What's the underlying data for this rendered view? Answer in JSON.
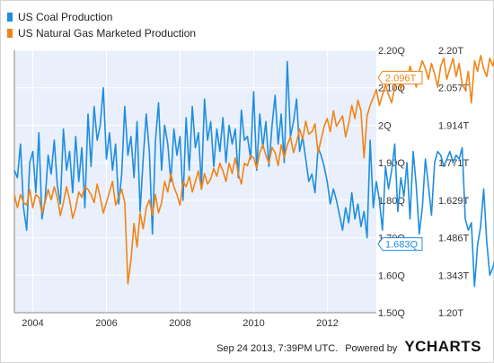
{
  "legend": [
    {
      "label": "US Coal Production",
      "color": "#1f8de0"
    },
    {
      "label": "US Natural Gas Marketed Production",
      "color": "#f08418"
    }
  ],
  "chart_data": {
    "type": "line",
    "title": "",
    "xlabel": "",
    "ylabel": "",
    "x_ticks": [
      "2004",
      "2006",
      "2008",
      "2010",
      "2012"
    ],
    "y_left_ticks": [
      "2.20Q",
      "2.10Q",
      "2Q",
      "1.90Q",
      "1.80Q",
      "1.70Q",
      "1.60Q",
      "1.50Q"
    ],
    "y_right_ticks": [
      "2.20T",
      "2.057T",
      "1.914T",
      "1.771T",
      "1.629T",
      "1.486T",
      "1.343T",
      "1.20T"
    ],
    "y_left_range": [
      1.5,
      2.2
    ],
    "y_right_range": [
      1.2,
      2.2
    ],
    "grid": true,
    "legend_position": "top-left",
    "series": [
      {
        "name": "US Coal Production",
        "axis": "left",
        "color": "#1f8de0",
        "last_value_label": "1.683Q",
        "x_start": 2003.5,
        "x_step": 0.0833,
        "values": [
          1.88,
          1.86,
          1.95,
          1.78,
          1.72,
          1.9,
          1.93,
          1.82,
          1.98,
          1.75,
          1.8,
          1.92,
          1.87,
          1.96,
          1.84,
          1.79,
          1.99,
          1.88,
          1.93,
          1.82,
          1.97,
          1.85,
          1.94,
          1.78,
          2.03,
          1.89,
          2.05,
          1.96,
          2.0,
          2.1,
          1.91,
          1.98,
          1.88,
          1.95,
          1.79,
          1.87,
          2.05,
          1.92,
          1.97,
          1.86,
          2.01,
          1.77,
          1.91,
          2.03,
          1.93,
          1.71,
          1.96,
          2.06,
          1.88,
          2.0,
          1.95,
          1.85,
          1.99,
          1.92,
          1.97,
          1.8,
          2.02,
          1.88,
          2.05,
          1.94,
          1.98,
          1.84,
          2.07,
          1.96,
          2.01,
          1.89,
          1.99,
          1.93,
          2.02,
          1.9,
          2.0,
          1.95,
          1.99,
          1.86,
          2.04,
          1.96,
          1.97,
          1.91,
          2.09,
          1.88,
          2.03,
          1.94,
          2.01,
          1.89,
          2.0,
          2.08,
          1.95,
          2.03,
          1.9,
          2.17,
          1.97,
          2.01,
          2.07,
          1.93,
          1.97,
          1.91,
          1.85,
          1.87,
          1.82,
          1.94,
          1.92,
          1.89,
          1.85,
          1.79,
          1.83,
          1.8,
          1.76,
          1.72,
          1.78,
          1.74,
          1.82,
          1.75,
          1.79,
          1.73,
          1.77,
          1.7,
          1.96,
          1.78,
          1.85,
          1.8,
          1.72,
          1.89,
          1.83,
          1.88,
          1.95,
          1.77,
          1.86,
          1.81,
          1.9,
          1.75,
          1.93,
          1.84,
          1.71,
          1.78,
          1.91,
          1.84,
          1.76,
          1.9,
          1.93,
          1.92,
          1.89,
          1.91,
          1.93,
          1.9,
          1.92,
          1.91,
          1.94,
          1.75,
          1.72,
          1.74,
          1.57,
          1.68,
          1.73,
          1.83,
          1.69,
          1.6,
          1.62,
          1.65,
          1.58,
          1.69,
          1.62,
          1.72,
          1.58,
          1.65,
          1.59,
          1.68,
          1.64,
          1.683
        ]
      },
      {
        "name": "US Natural Gas Marketed Production",
        "axis": "right",
        "color": "#f08418",
        "last_value_label": "2.096T",
        "x_start": 2003.5,
        "x_step": 0.0833,
        "values": [
          1.65,
          1.6,
          1.65,
          1.62,
          1.61,
          1.67,
          1.6,
          1.65,
          1.64,
          1.58,
          1.62,
          1.67,
          1.63,
          1.68,
          1.64,
          1.57,
          1.62,
          1.68,
          1.63,
          1.56,
          1.6,
          1.66,
          1.64,
          1.68,
          1.67,
          1.65,
          1.62,
          1.69,
          1.64,
          1.58,
          1.62,
          1.66,
          1.7,
          1.61,
          1.64,
          1.67,
          1.62,
          1.31,
          1.4,
          1.54,
          1.45,
          1.58,
          1.52,
          1.6,
          1.63,
          1.57,
          1.65,
          1.58,
          1.62,
          1.7,
          1.66,
          1.73,
          1.68,
          1.65,
          1.61,
          1.7,
          1.68,
          1.72,
          1.66,
          1.7,
          1.74,
          1.67,
          1.73,
          1.69,
          1.71,
          1.75,
          1.72,
          1.77,
          1.74,
          1.7,
          1.77,
          1.73,
          1.79,
          1.73,
          1.69,
          1.77,
          1.76,
          1.8,
          1.79,
          1.75,
          1.81,
          1.84,
          1.8,
          1.77,
          1.83,
          1.81,
          1.76,
          1.84,
          1.79,
          1.84,
          1.87,
          1.81,
          1.85,
          1.9,
          1.86,
          1.93,
          1.88,
          1.89,
          1.92,
          1.81,
          1.86,
          1.91,
          1.94,
          1.89,
          1.97,
          1.91,
          1.93,
          1.95,
          1.87,
          1.92,
          1.99,
          1.94,
          2.01,
          1.97,
          1.79,
          1.95,
          1.99,
          2.02,
          2.05,
          1.99,
          2.03,
          2.07,
          2.03,
          2.0,
          2.06,
          2.1,
          2.05,
          2.11,
          2.08,
          2.14,
          2.1,
          2.06,
          2.12,
          2.16,
          2.13,
          2.09,
          2.15,
          2.11,
          2.06,
          2.14,
          2.17,
          2.09,
          2.13,
          2.17,
          2.1,
          2.15,
          2.07,
          2.05,
          2.12,
          2.0,
          2.16,
          2.12,
          2.18,
          2.13,
          2.1,
          2.17,
          2.14,
          2.19,
          2.12,
          2.16,
          2.12,
          2.1,
          2.14,
          2.05,
          1.96,
          2.07,
          2.13,
          2.09,
          2.11,
          2.14,
          2.09,
          2.096
        ]
      }
    ]
  },
  "footer": {
    "timestamp": "Sep 24 2013, 7:39PM UTC.",
    "powered_by": "Powered by",
    "logo_y": "Y",
    "logo_rest": "CHARTS"
  }
}
